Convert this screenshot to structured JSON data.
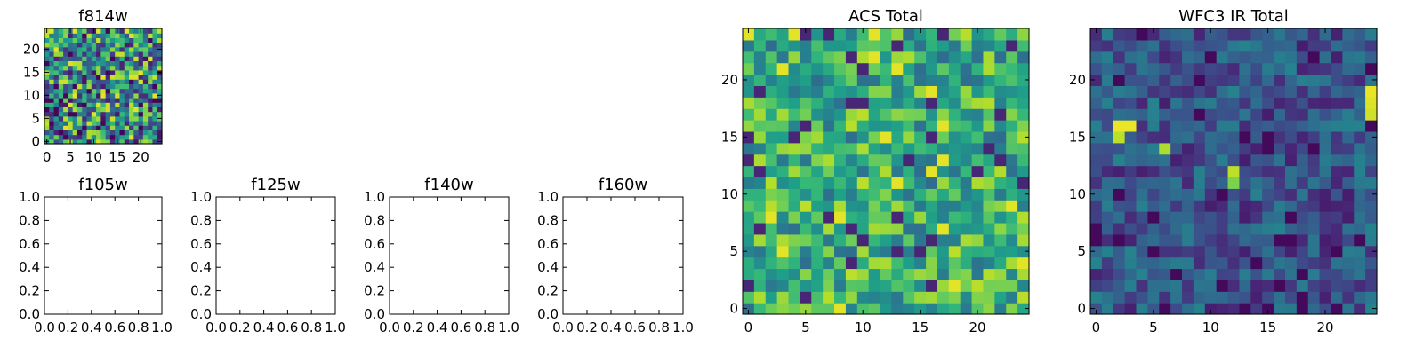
{
  "chart_data": [
    {
      "type": "heatmap",
      "title": "f814w",
      "grid_size": 25,
      "xticks": [
        0,
        5,
        10,
        15,
        20
      ],
      "yticks": [
        0,
        5,
        10,
        15,
        20
      ],
      "xlim": [
        -0.5,
        24.5
      ],
      "ylim": [
        -0.5,
        24.5
      ],
      "colormap": "viridis",
      "seed": 814,
      "value_range": [
        0.05,
        0.95
      ],
      "hot_cells": []
    },
    {
      "type": "empty",
      "title": "f105w",
      "xticks": [
        "0.0",
        "0.2",
        "0.4",
        "0.6",
        "0.8",
        "1.0"
      ],
      "yticks": [
        "0.0",
        "0.2",
        "0.4",
        "0.6",
        "0.8",
        "1.0"
      ],
      "xlim": [
        0,
        1
      ],
      "ylim": [
        0,
        1
      ]
    },
    {
      "type": "empty",
      "title": "f125w",
      "xticks": [
        "0.0",
        "0.2",
        "0.4",
        "0.6",
        "0.8",
        "1.0"
      ],
      "yticks": [
        "0.0",
        "0.2",
        "0.4",
        "0.6",
        "0.8",
        "1.0"
      ],
      "xlim": [
        0,
        1
      ],
      "ylim": [
        0,
        1
      ]
    },
    {
      "type": "empty",
      "title": "f140w",
      "xticks": [
        "0.0",
        "0.2",
        "0.4",
        "0.6",
        "0.8",
        "1.0"
      ],
      "yticks": [
        "0.0",
        "0.2",
        "0.4",
        "0.6",
        "0.8",
        "1.0"
      ],
      "xlim": [
        0,
        1
      ],
      "ylim": [
        0,
        1
      ]
    },
    {
      "type": "empty",
      "title": "f160w",
      "xticks": [
        "0.0",
        "0.2",
        "0.4",
        "0.6",
        "0.8",
        "1.0"
      ],
      "yticks": [
        "0.0",
        "0.2",
        "0.4",
        "0.6",
        "0.8",
        "1.0"
      ],
      "xlim": [
        0,
        1
      ],
      "ylim": [
        0,
        1
      ]
    },
    {
      "type": "heatmap",
      "title": "ACS Total",
      "grid_size": 25,
      "xticks": [
        0,
        5,
        10,
        15,
        20
      ],
      "yticks": [
        0,
        5,
        10,
        15,
        20
      ],
      "xlim": [
        -0.5,
        24.5
      ],
      "ylim": [
        -0.5,
        24.5
      ],
      "colormap": "viridis",
      "seed": 2024,
      "value_range": [
        0.35,
        0.9
      ],
      "hot_cells": []
    },
    {
      "type": "heatmap",
      "title": "WFC3 IR Total",
      "grid_size": 25,
      "xticks": [
        0,
        5,
        10,
        15,
        20
      ],
      "yticks": [
        0,
        5,
        10,
        15,
        20
      ],
      "xlim": [
        -0.5,
        24.5
      ],
      "ylim": [
        -0.5,
        24.5
      ],
      "colormap": "viridis",
      "seed": 3141,
      "value_range": [
        0.08,
        0.45
      ],
      "hot_cells": [
        [
          2,
          16,
          0.97
        ],
        [
          3,
          16,
          0.97
        ],
        [
          2,
          15,
          0.9
        ],
        [
          6,
          14,
          0.88
        ],
        [
          12,
          12,
          0.9
        ],
        [
          12,
          11,
          0.8
        ],
        [
          24,
          19,
          0.97
        ],
        [
          24,
          18,
          0.95
        ],
        [
          24,
          17,
          0.93
        ]
      ]
    }
  ]
}
